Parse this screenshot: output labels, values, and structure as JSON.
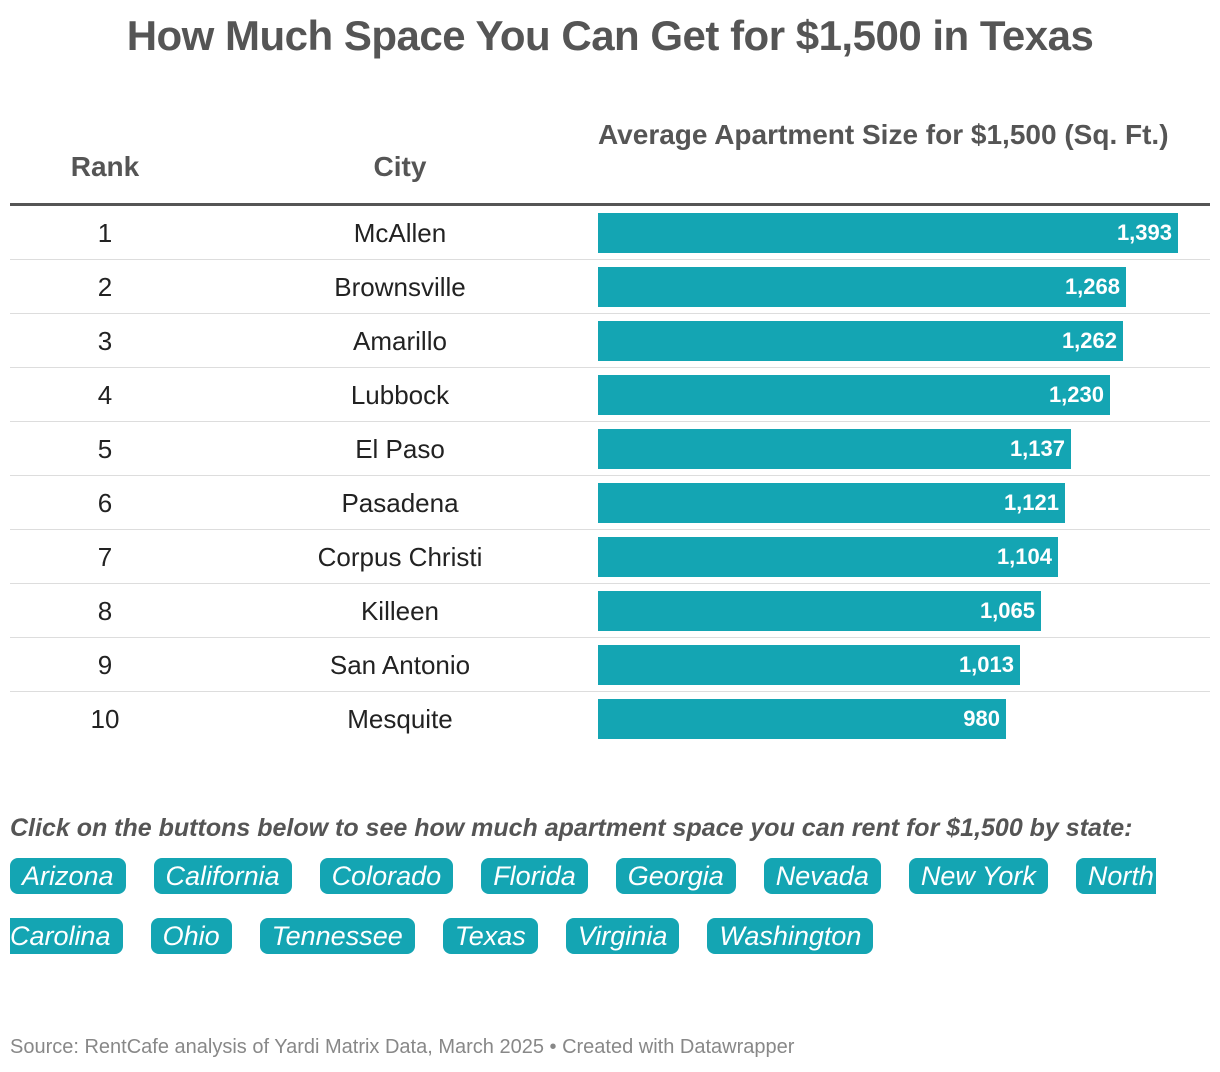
{
  "title": "How Much Space You Can Get for $1,500 in Texas",
  "table": {
    "headers": {
      "rank": "Rank",
      "city": "City",
      "size": "Average Apartment Size for $1,500 (Sq. Ft.)"
    }
  },
  "chart_data": {
    "type": "bar",
    "title": "How Much Space You Can Get for $1,500 in Texas",
    "bar_color": "#14a5b3",
    "value_label": "Average Apartment Size for $1,500 (Sq. Ft.)",
    "rows": [
      {
        "rank": "1",
        "city": "McAllen",
        "value": 1393,
        "label": "1,393"
      },
      {
        "rank": "2",
        "city": "Brownsville",
        "value": 1268,
        "label": "1,268"
      },
      {
        "rank": "3",
        "city": "Amarillo",
        "value": 1262,
        "label": "1,262"
      },
      {
        "rank": "4",
        "city": "Lubbock",
        "value": 1230,
        "label": "1,230"
      },
      {
        "rank": "5",
        "city": "El Paso",
        "value": 1137,
        "label": "1,137"
      },
      {
        "rank": "6",
        "city": "Pasadena",
        "value": 1121,
        "label": "1,121"
      },
      {
        "rank": "7",
        "city": "Corpus Christi",
        "value": 1104,
        "label": "1,104"
      },
      {
        "rank": "8",
        "city": "Killeen",
        "value": 1065,
        "label": "1,065"
      },
      {
        "rank": "9",
        "city": "San Antonio",
        "value": 1013,
        "label": "1,013"
      },
      {
        "rank": "10",
        "city": "Mesquite",
        "value": 980,
        "label": "980"
      }
    ]
  },
  "states": {
    "prompt": "Click on the buttons below to see how much apartment space you can rent for $1,500 by state:",
    "buttons": [
      "Arizona",
      "California",
      "Colorado",
      "Florida",
      "Georgia",
      "Nevada",
      "New York",
      "North Carolina",
      "Ohio",
      "Tennessee",
      "Texas",
      "Virginia",
      "Washington"
    ],
    "north_carolina_first": "North",
    "north_carolina_second": "Carolina"
  },
  "footer": {
    "source": "Source: RentCafe analysis of Yardi Matrix Data, March 2025 • Created with Datawrapper"
  }
}
